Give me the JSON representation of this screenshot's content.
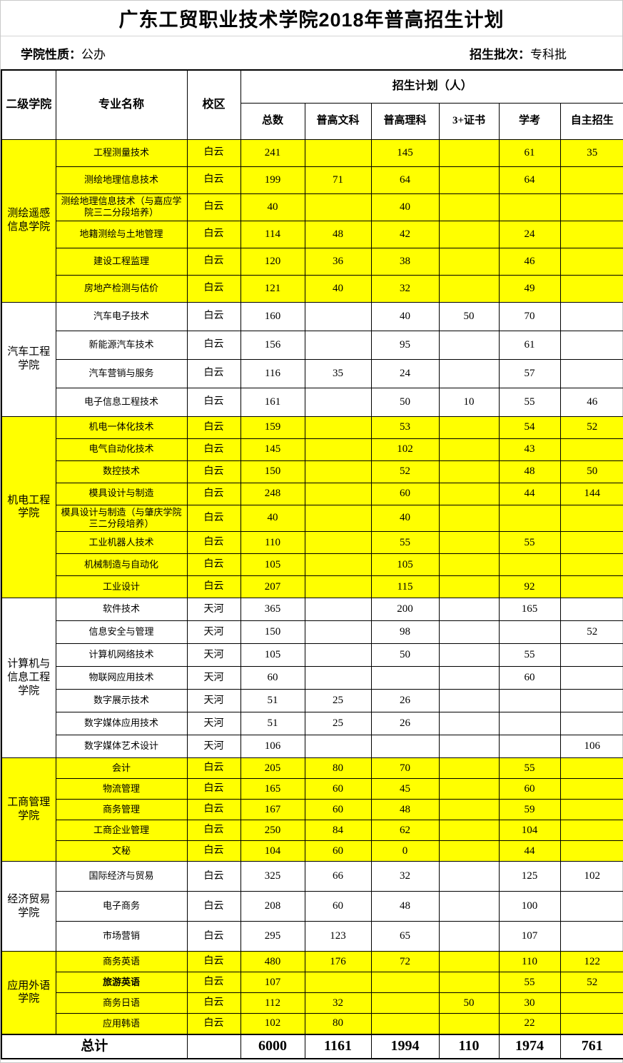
{
  "title": "广东工贸职业技术学院2018年普高招生计划",
  "info": {
    "nature_label": "学院性质：",
    "nature_value": "公办",
    "batch_label": "招生批次：",
    "batch_value": "专科批"
  },
  "colors": {
    "highlight": "#FFFF00",
    "border": "#000000",
    "text": "#000000",
    "background": "#FFFFFF"
  },
  "table": {
    "header": {
      "college": "二级学院",
      "major": "专业名称",
      "campus": "校区",
      "plan_group": "招生计划（人）",
      "columns": [
        "总数",
        "普高文科",
        "普高理科",
        "3+证书",
        "学考",
        "自主招生"
      ]
    },
    "groups": [
      {
        "college": "测绘遥感信息学院",
        "highlight": true,
        "rows": [
          {
            "major": "工程测量技术",
            "campus": "白云",
            "values": [
              "241",
              "",
              "145",
              "",
              "61",
              "35"
            ]
          },
          {
            "major": "测绘地理信息技术",
            "campus": "白云",
            "values": [
              "199",
              "71",
              "64",
              "",
              "64",
              ""
            ]
          },
          {
            "major": "测绘地理信息技术（与嘉应学院三二分段培养）",
            "campus": "白云",
            "values": [
              "40",
              "",
              "40",
              "",
              "",
              ""
            ]
          },
          {
            "major": "地籍测绘与土地管理",
            "campus": "白云",
            "values": [
              "114",
              "48",
              "42",
              "",
              "24",
              ""
            ]
          },
          {
            "major": "建设工程监理",
            "campus": "白云",
            "values": [
              "120",
              "36",
              "38",
              "",
              "46",
              ""
            ]
          },
          {
            "major": "房地产检测与估价",
            "campus": "白云",
            "values": [
              "121",
              "40",
              "32",
              "",
              "49",
              ""
            ]
          }
        ]
      },
      {
        "college": "汽车工程学院",
        "highlight": false,
        "rows": [
          {
            "major": "汽车电子技术",
            "campus": "白云",
            "values": [
              "160",
              "",
              "40",
              "50",
              "70",
              ""
            ]
          },
          {
            "major": "新能源汽车技术",
            "campus": "白云",
            "values": [
              "156",
              "",
              "95",
              "",
              "61",
              ""
            ]
          },
          {
            "major": "汽车营销与服务",
            "campus": "白云",
            "values": [
              "116",
              "35",
              "24",
              "",
              "57",
              ""
            ]
          },
          {
            "major": "电子信息工程技术",
            "campus": "白云",
            "values": [
              "161",
              "",
              "50",
              "10",
              "55",
              "46"
            ]
          }
        ]
      },
      {
        "college": "机电工程学院",
        "highlight": true,
        "rows": [
          {
            "major": "机电一体化技术",
            "campus": "白云",
            "values": [
              "159",
              "",
              "53",
              "",
              "54",
              "52"
            ]
          },
          {
            "major": "电气自动化技术",
            "campus": "白云",
            "values": [
              "145",
              "",
              "102",
              "",
              "43",
              ""
            ]
          },
          {
            "major": "数控技术",
            "campus": "白云",
            "values": [
              "150",
              "",
              "52",
              "",
              "48",
              "50"
            ]
          },
          {
            "major": "模具设计与制造",
            "campus": "白云",
            "values": [
              "248",
              "",
              "60",
              "",
              "44",
              "144"
            ]
          },
          {
            "major": "模具设计与制造（与肇庆学院三二分段培养）",
            "campus": "白云",
            "values": [
              "40",
              "",
              "40",
              "",
              "",
              ""
            ]
          },
          {
            "major": "工业机器人技术",
            "campus": "白云",
            "values": [
              "110",
              "",
              "55",
              "",
              "55",
              ""
            ]
          },
          {
            "major": "机械制造与自动化",
            "campus": "白云",
            "values": [
              "105",
              "",
              "105",
              "",
              "",
              ""
            ]
          },
          {
            "major": "工业设计",
            "campus": "白云",
            "values": [
              "207",
              "",
              "115",
              "",
              "92",
              ""
            ]
          }
        ]
      },
      {
        "college": "计算机与信息工程学院",
        "highlight": false,
        "rows": [
          {
            "major": "软件技术",
            "campus": "天河",
            "values": [
              "365",
              "",
              "200",
              "",
              "165",
              ""
            ]
          },
          {
            "major": "信息安全与管理",
            "campus": "天河",
            "values": [
              "150",
              "",
              "98",
              "",
              "",
              "52"
            ]
          },
          {
            "major": "计算机网络技术",
            "campus": "天河",
            "values": [
              "105",
              "",
              "50",
              "",
              "55",
              ""
            ]
          },
          {
            "major": "物联网应用技术",
            "campus": "天河",
            "values": [
              "60",
              "",
              "",
              "",
              "60",
              ""
            ]
          },
          {
            "major": "数字展示技术",
            "campus": "天河",
            "values": [
              "51",
              "25",
              "26",
              "",
              "",
              ""
            ]
          },
          {
            "major": "数字媒体应用技术",
            "campus": "天河",
            "values": [
              "51",
              "25",
              "26",
              "",
              "",
              ""
            ]
          },
          {
            "major": "数字媒体艺术设计",
            "campus": "天河",
            "values": [
              "106",
              "",
              "",
              "",
              "",
              "106"
            ]
          }
        ]
      },
      {
        "college": "工商管理学院",
        "highlight": true,
        "rows": [
          {
            "major": "会计",
            "campus": "白云",
            "values": [
              "205",
              "80",
              "70",
              "",
              "55",
              ""
            ]
          },
          {
            "major": "物流管理",
            "campus": "白云",
            "values": [
              "165",
              "60",
              "45",
              "",
              "60",
              ""
            ]
          },
          {
            "major": "商务管理",
            "campus": "白云",
            "values": [
              "167",
              "60",
              "48",
              "",
              "59",
              ""
            ]
          },
          {
            "major": "工商企业管理",
            "campus": "白云",
            "values": [
              "250",
              "84",
              "62",
              "",
              "104",
              ""
            ]
          },
          {
            "major": "文秘",
            "campus": "白云",
            "values": [
              "104",
              "60",
              "0",
              "",
              "44",
              ""
            ]
          }
        ]
      },
      {
        "college": "经济贸易学院",
        "highlight": false,
        "rows": [
          {
            "major": "国际经济与贸易",
            "campus": "白云",
            "values": [
              "325",
              "66",
              "32",
              "",
              "125",
              "102"
            ]
          },
          {
            "major": "电子商务",
            "campus": "白云",
            "values": [
              "208",
              "60",
              "48",
              "",
              "100",
              ""
            ]
          },
          {
            "major": "市场营销",
            "campus": "白云",
            "values": [
              "295",
              "123",
              "65",
              "",
              "107",
              ""
            ]
          }
        ]
      },
      {
        "college": "应用外语学院",
        "highlight": true,
        "rows": [
          {
            "major": "商务英语",
            "campus": "白云",
            "values": [
              "480",
              "176",
              "72",
              "",
              "110",
              "122"
            ]
          },
          {
            "major": "旅游英语",
            "campus": "白云",
            "bold": true,
            "values": [
              "107",
              "",
              "",
              "",
              "55",
              "52"
            ]
          },
          {
            "major": "商务日语",
            "campus": "白云",
            "values": [
              "112",
              "32",
              "",
              "50",
              "30",
              ""
            ]
          },
          {
            "major": "应用韩语",
            "campus": "白云",
            "values": [
              "102",
              "80",
              "",
              "",
              "22",
              ""
            ]
          }
        ]
      }
    ],
    "total": {
      "label": "总计",
      "values": [
        "6000",
        "1161",
        "1994",
        "110",
        "1974",
        "761"
      ]
    }
  }
}
